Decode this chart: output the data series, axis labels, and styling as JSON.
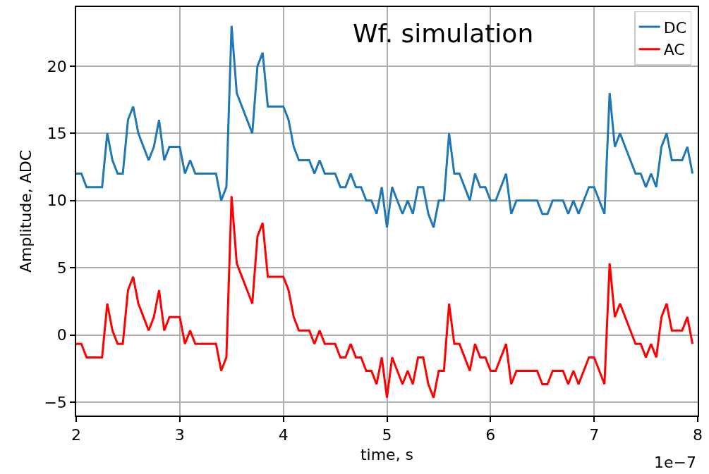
{
  "chart_data": {
    "type": "line",
    "title": "Wf. simulation",
    "xlabel": "time, s",
    "ylabel": "Amplitude, ADC",
    "annotations": [
      "1e−7"
    ],
    "x": [
      2.0,
      2.05,
      2.1,
      2.15,
      2.2,
      2.25,
      2.3,
      2.35,
      2.4,
      2.45,
      2.5,
      2.55,
      2.6,
      2.65,
      2.7,
      2.75,
      2.8,
      2.85,
      2.9,
      2.95,
      3.0,
      3.05,
      3.1,
      3.15,
      3.2,
      3.25,
      3.3,
      3.35,
      3.4,
      3.45,
      3.5,
      3.55,
      3.6,
      3.65,
      3.7,
      3.75,
      3.8,
      3.85,
      3.9,
      3.95,
      4.0,
      4.05,
      4.1,
      4.15,
      4.2,
      4.25,
      4.3,
      4.35,
      4.4,
      4.45,
      4.5,
      4.55,
      4.6,
      4.65,
      4.7,
      4.75,
      4.8,
      4.85,
      4.9,
      4.95,
      5.0,
      5.05,
      5.1,
      5.15,
      5.2,
      5.25,
      5.3,
      5.35,
      5.4,
      5.45,
      5.5,
      5.55,
      5.6,
      5.65,
      5.7,
      5.75,
      5.8,
      5.85,
      5.9,
      5.95,
      6.0,
      6.05,
      6.1,
      6.15,
      6.2,
      6.25,
      6.3,
      6.35,
      6.4,
      6.45,
      6.5,
      6.55,
      6.6,
      6.65,
      6.7,
      6.75,
      6.8,
      6.85,
      6.9,
      6.95,
      7.0,
      7.05,
      7.1,
      7.15,
      7.2,
      7.25,
      7.3,
      7.35,
      7.4,
      7.45,
      7.5,
      7.55,
      7.6,
      7.65,
      7.7,
      7.75,
      7.8,
      7.85,
      7.9,
      7.95
    ],
    "series": [
      {
        "name": "DC",
        "color": "#1f77b4",
        "values": [
          12,
          12,
          11,
          11,
          11,
          11,
          15,
          13,
          12,
          12,
          16,
          17,
          15,
          14,
          13,
          14,
          16,
          13,
          14,
          14,
          14,
          12,
          13,
          12,
          12,
          12,
          12,
          12,
          10,
          11,
          23,
          18,
          17,
          16,
          15,
          20,
          21,
          17,
          17,
          17,
          17,
          16,
          14,
          13,
          13,
          13,
          12,
          13,
          12,
          12,
          12,
          11,
          11,
          12,
          11,
          11,
          10,
          10,
          9,
          11,
          8,
          11,
          10,
          9,
          10,
          9,
          11,
          11,
          9,
          8,
          10,
          10,
          15,
          12,
          12,
          11,
          10,
          12,
          11,
          11,
          10,
          10,
          11,
          12,
          9,
          10,
          10,
          10,
          10,
          10,
          9,
          9,
          10,
          10,
          10,
          9,
          10,
          9,
          10,
          11,
          11,
          10,
          9,
          18,
          14,
          15,
          14,
          13,
          12,
          12,
          11,
          12,
          11,
          14,
          15,
          13,
          13,
          13,
          14,
          12
        ]
      },
      {
        "name": "AC",
        "color": "#ff0000",
        "values": [
          -0.67,
          -0.67,
          -1.67,
          -1.67,
          -1.67,
          -1.67,
          2.33,
          0.33,
          -0.67,
          -0.67,
          3.33,
          4.33,
          2.33,
          1.33,
          0.33,
          1.33,
          3.33,
          0.33,
          1.33,
          1.33,
          1.33,
          -0.67,
          0.33,
          -0.67,
          -0.67,
          -0.67,
          -0.67,
          -0.67,
          -2.67,
          -1.67,
          10.33,
          5.33,
          4.33,
          3.33,
          2.33,
          7.33,
          8.33,
          4.33,
          4.33,
          4.33,
          4.33,
          3.33,
          1.33,
          0.33,
          0.33,
          0.33,
          -0.67,
          0.33,
          -0.67,
          -0.67,
          -0.67,
          -1.67,
          -1.67,
          -0.67,
          -1.67,
          -1.67,
          -2.67,
          -2.67,
          -3.67,
          -1.67,
          -4.67,
          -1.67,
          -2.67,
          -3.67,
          -2.67,
          -3.67,
          -1.67,
          -1.67,
          -3.67,
          -4.67,
          -2.67,
          -2.67,
          2.33,
          -0.67,
          -0.67,
          -1.67,
          -2.67,
          -0.67,
          -1.67,
          -1.67,
          -2.67,
          -2.67,
          -1.67,
          -0.67,
          -3.67,
          -2.67,
          -2.67,
          -2.67,
          -2.67,
          -2.67,
          -3.67,
          -3.67,
          -2.67,
          -2.67,
          -2.67,
          -3.67,
          -2.67,
          -3.67,
          -2.67,
          -1.67,
          -1.67,
          -2.67,
          -3.67,
          5.33,
          1.33,
          2.33,
          1.33,
          0.33,
          -0.67,
          -0.67,
          -1.67,
          -0.67,
          -1.67,
          1.33,
          2.33,
          0.33,
          0.33,
          0.33,
          1.33,
          -0.67
        ]
      }
    ],
    "xlim": [
      2,
      8
    ],
    "xticks": [
      2,
      3,
      4,
      5,
      6,
      7,
      8
    ],
    "ylim": [
      -6,
      24.4
    ],
    "yticks": [
      {
        "value": -5,
        "label": "−5"
      },
      0,
      5,
      10,
      15,
      20
    ],
    "grid": true,
    "legend": "top right",
    "marker": "none",
    "line_style": "solid"
  }
}
